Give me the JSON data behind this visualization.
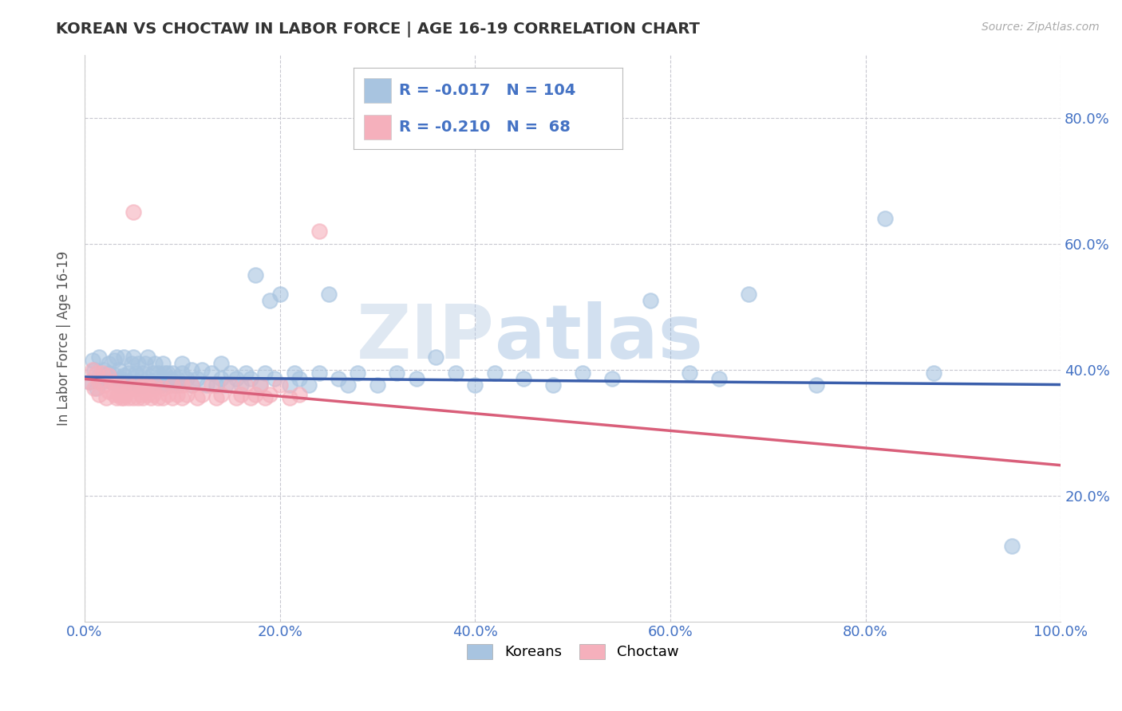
{
  "title": "KOREAN VS CHOCTAW IN LABOR FORCE | AGE 16-19 CORRELATION CHART",
  "source": "Source: ZipAtlas.com",
  "ylabel": "In Labor Force | Age 16-19",
  "xlim": [
    0.0,
    1.0
  ],
  "ylim": [
    0.0,
    0.9
  ],
  "yticks": [
    0.2,
    0.4,
    0.6,
    0.8
  ],
  "xticks": [
    0.0,
    0.2,
    0.4,
    0.6,
    0.8,
    1.0
  ],
  "korean_R": -0.017,
  "korean_N": 104,
  "choctaw_R": -0.21,
  "choctaw_N": 68,
  "korean_color": "#a8c4e0",
  "choctaw_color": "#f5b0bc",
  "korean_line_color": "#3a5eab",
  "choctaw_line_color": "#d95f7a",
  "watermark_zip": "ZIP",
  "watermark_atlas": "atlas",
  "title_color": "#333333",
  "tick_color": "#4472c4",
  "legend_label_korean": "Koreans",
  "legend_label_choctaw": "Choctaw",
  "background_color": "#ffffff",
  "grid_color": "#c8c8d0",
  "korean_line_y0": 0.388,
  "korean_line_y1": 0.376,
  "choctaw_line_y0": 0.385,
  "choctaw_line_y1": 0.248,
  "korean_points": [
    [
      0.005,
      0.38
    ],
    [
      0.008,
      0.415
    ],
    [
      0.01,
      0.4
    ],
    [
      0.012,
      0.37
    ],
    [
      0.015,
      0.42
    ],
    [
      0.015,
      0.39
    ],
    [
      0.018,
      0.38
    ],
    [
      0.02,
      0.4
    ],
    [
      0.022,
      0.385
    ],
    [
      0.025,
      0.41
    ],
    [
      0.025,
      0.395
    ],
    [
      0.028,
      0.38
    ],
    [
      0.03,
      0.415
    ],
    [
      0.032,
      0.39
    ],
    [
      0.033,
      0.42
    ],
    [
      0.035,
      0.375
    ],
    [
      0.035,
      0.4
    ],
    [
      0.038,
      0.385
    ],
    [
      0.04,
      0.42
    ],
    [
      0.04,
      0.39
    ],
    [
      0.042,
      0.375
    ],
    [
      0.045,
      0.395
    ],
    [
      0.045,
      0.38
    ],
    [
      0.048,
      0.41
    ],
    [
      0.05,
      0.385
    ],
    [
      0.05,
      0.42
    ],
    [
      0.052,
      0.395
    ],
    [
      0.055,
      0.375
    ],
    [
      0.055,
      0.41
    ],
    [
      0.058,
      0.385
    ],
    [
      0.06,
      0.395
    ],
    [
      0.06,
      0.375
    ],
    [
      0.062,
      0.41
    ],
    [
      0.065,
      0.385
    ],
    [
      0.065,
      0.42
    ],
    [
      0.068,
      0.38
    ],
    [
      0.07,
      0.395
    ],
    [
      0.07,
      0.375
    ],
    [
      0.072,
      0.41
    ],
    [
      0.075,
      0.385
    ],
    [
      0.075,
      0.395
    ],
    [
      0.078,
      0.375
    ],
    [
      0.08,
      0.41
    ],
    [
      0.08,
      0.385
    ],
    [
      0.082,
      0.395
    ],
    [
      0.085,
      0.375
    ],
    [
      0.085,
      0.395
    ],
    [
      0.088,
      0.385
    ],
    [
      0.09,
      0.375
    ],
    [
      0.09,
      0.395
    ],
    [
      0.095,
      0.385
    ],
    [
      0.095,
      0.375
    ],
    [
      0.1,
      0.395
    ],
    [
      0.1,
      0.41
    ],
    [
      0.105,
      0.385
    ],
    [
      0.11,
      0.375
    ],
    [
      0.11,
      0.4
    ],
    [
      0.115,
      0.385
    ],
    [
      0.12,
      0.4
    ],
    [
      0.125,
      0.375
    ],
    [
      0.13,
      0.395
    ],
    [
      0.135,
      0.375
    ],
    [
      0.14,
      0.385
    ],
    [
      0.14,
      0.41
    ],
    [
      0.145,
      0.375
    ],
    [
      0.15,
      0.395
    ],
    [
      0.155,
      0.385
    ],
    [
      0.16,
      0.375
    ],
    [
      0.165,
      0.395
    ],
    [
      0.17,
      0.385
    ],
    [
      0.175,
      0.55
    ],
    [
      0.18,
      0.375
    ],
    [
      0.185,
      0.395
    ],
    [
      0.19,
      0.51
    ],
    [
      0.195,
      0.385
    ],
    [
      0.2,
      0.52
    ],
    [
      0.21,
      0.375
    ],
    [
      0.215,
      0.395
    ],
    [
      0.22,
      0.385
    ],
    [
      0.23,
      0.375
    ],
    [
      0.24,
      0.395
    ],
    [
      0.25,
      0.52
    ],
    [
      0.26,
      0.385
    ],
    [
      0.27,
      0.375
    ],
    [
      0.28,
      0.395
    ],
    [
      0.3,
      0.375
    ],
    [
      0.32,
      0.395
    ],
    [
      0.34,
      0.385
    ],
    [
      0.36,
      0.42
    ],
    [
      0.38,
      0.395
    ],
    [
      0.4,
      0.375
    ],
    [
      0.42,
      0.395
    ],
    [
      0.45,
      0.385
    ],
    [
      0.48,
      0.375
    ],
    [
      0.51,
      0.395
    ],
    [
      0.54,
      0.385
    ],
    [
      0.58,
      0.51
    ],
    [
      0.62,
      0.395
    ],
    [
      0.65,
      0.385
    ],
    [
      0.68,
      0.52
    ],
    [
      0.75,
      0.375
    ],
    [
      0.82,
      0.64
    ],
    [
      0.87,
      0.395
    ],
    [
      0.95,
      0.12
    ]
  ],
  "choctaw_points": [
    [
      0.005,
      0.38
    ],
    [
      0.008,
      0.4
    ],
    [
      0.01,
      0.37
    ],
    [
      0.012,
      0.395
    ],
    [
      0.015,
      0.38
    ],
    [
      0.015,
      0.36
    ],
    [
      0.018,
      0.395
    ],
    [
      0.02,
      0.375
    ],
    [
      0.022,
      0.355
    ],
    [
      0.025,
      0.39
    ],
    [
      0.025,
      0.365
    ],
    [
      0.028,
      0.38
    ],
    [
      0.03,
      0.36
    ],
    [
      0.032,
      0.375
    ],
    [
      0.033,
      0.355
    ],
    [
      0.035,
      0.36
    ],
    [
      0.035,
      0.375
    ],
    [
      0.038,
      0.355
    ],
    [
      0.04,
      0.37
    ],
    [
      0.04,
      0.355
    ],
    [
      0.042,
      0.36
    ],
    [
      0.045,
      0.375
    ],
    [
      0.045,
      0.355
    ],
    [
      0.048,
      0.37
    ],
    [
      0.05,
      0.355
    ],
    [
      0.05,
      0.65
    ],
    [
      0.052,
      0.375
    ],
    [
      0.055,
      0.355
    ],
    [
      0.055,
      0.37
    ],
    [
      0.058,
      0.36
    ],
    [
      0.06,
      0.375
    ],
    [
      0.06,
      0.355
    ],
    [
      0.062,
      0.37
    ],
    [
      0.065,
      0.36
    ],
    [
      0.065,
      0.375
    ],
    [
      0.068,
      0.355
    ],
    [
      0.07,
      0.37
    ],
    [
      0.07,
      0.36
    ],
    [
      0.072,
      0.375
    ],
    [
      0.075,
      0.355
    ],
    [
      0.08,
      0.37
    ],
    [
      0.08,
      0.355
    ],
    [
      0.085,
      0.36
    ],
    [
      0.09,
      0.375
    ],
    [
      0.09,
      0.355
    ],
    [
      0.095,
      0.36
    ],
    [
      0.1,
      0.375
    ],
    [
      0.1,
      0.355
    ],
    [
      0.105,
      0.36
    ],
    [
      0.11,
      0.375
    ],
    [
      0.115,
      0.355
    ],
    [
      0.12,
      0.36
    ],
    [
      0.13,
      0.375
    ],
    [
      0.135,
      0.355
    ],
    [
      0.14,
      0.36
    ],
    [
      0.15,
      0.375
    ],
    [
      0.155,
      0.355
    ],
    [
      0.16,
      0.36
    ],
    [
      0.165,
      0.375
    ],
    [
      0.17,
      0.355
    ],
    [
      0.175,
      0.36
    ],
    [
      0.18,
      0.375
    ],
    [
      0.185,
      0.355
    ],
    [
      0.19,
      0.36
    ],
    [
      0.2,
      0.375
    ],
    [
      0.21,
      0.355
    ],
    [
      0.22,
      0.36
    ],
    [
      0.24,
      0.62
    ]
  ]
}
